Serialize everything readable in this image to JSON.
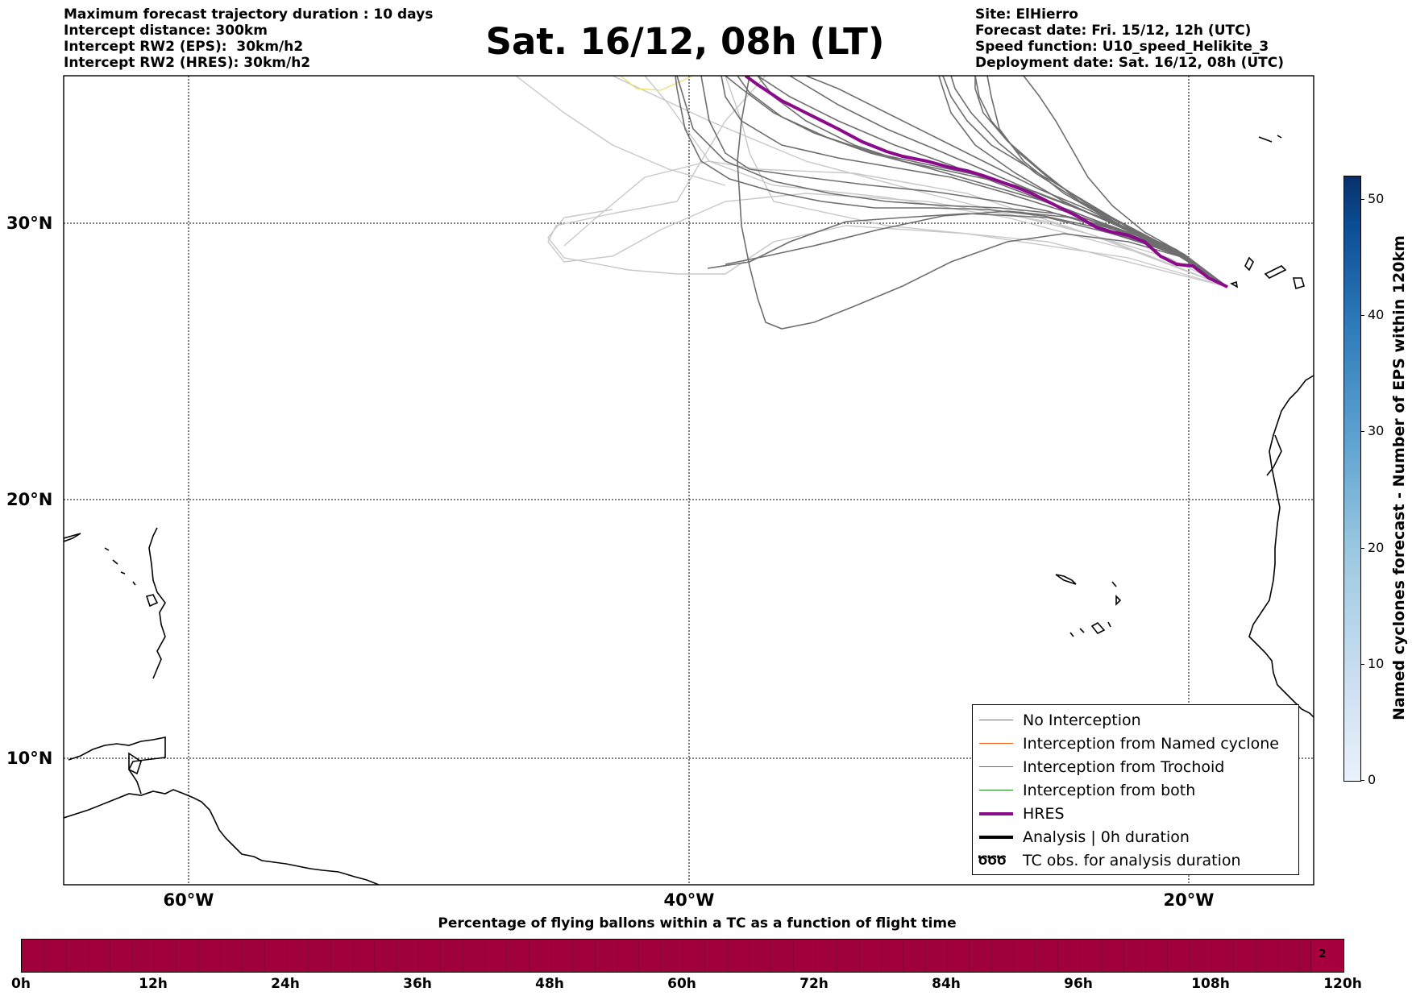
{
  "header": {
    "info_left": [
      "Maximum forecast trajectory duration : 10 days",
      "Intercept distance: 300km",
      "Intercept RW2 (EPS):  30km/h2",
      "Intercept RW2 (HRES): 30km/h2"
    ],
    "title": "Sat. 16/12, 08h (LT)",
    "info_right": [
      "Site: ElHierro",
      "Forecast date: Fri. 15/12, 12h (UTC)",
      "Speed function: U10_speed_Helikite_3",
      "Deployment date: Sat. 16/12, 08h (UTC)"
    ]
  },
  "map": {
    "latitude_labels": [
      "30°N",
      "20°N",
      "10°N"
    ],
    "longitude_labels": [
      "60°W",
      "40°W",
      "20°W"
    ],
    "colors": {
      "no_interception": "#6e6e6e",
      "old_trajectories": "#c8c8c8",
      "hres": "#8b0a8b",
      "named_cyclone": "#ff5a14",
      "trochoid": "#7a7a1e",
      "both": "#1e8c1e",
      "analysis": "#000000",
      "yellow_track": "#e8e060"
    }
  },
  "legend": {
    "items": [
      {
        "label": "No Interception",
        "color": "#6e6e6e",
        "style": "thin"
      },
      {
        "label": "Interception from Named cyclone",
        "color": "#ff5a14",
        "style": "thin"
      },
      {
        "label": "Interception from Trochoid",
        "color": "#7a7a1e",
        "style": "thin"
      },
      {
        "label": "Interception from both",
        "color": "#1e8c1e",
        "style": "thin"
      },
      {
        "label": "HRES",
        "color": "#8b0a8b",
        "style": "thick"
      },
      {
        "label": "Analysis | 0h duration",
        "color": "#000000",
        "style": "thick"
      },
      {
        "label": "TC obs. for analysis duration",
        "color": "#000000",
        "style": "symbol",
        "symbol": "ԾԾԾ"
      }
    ]
  },
  "colorbar": {
    "label": "Named cyclones forecast - Number of EPS within 120km",
    "ticks": [
      "0",
      "10",
      "20",
      "30",
      "40",
      "50"
    ],
    "range": [
      0,
      52
    ]
  },
  "timebar": {
    "title": "Percentage of flying ballons within a TC as a function of flight time",
    "tick_labels": [
      "0h",
      "12h",
      "24h",
      "36h",
      "48h",
      "60h",
      "72h",
      "84h",
      "96h",
      "108h",
      "120h"
    ],
    "last_cell_value": "2",
    "fill_color": "#a0003c"
  }
}
